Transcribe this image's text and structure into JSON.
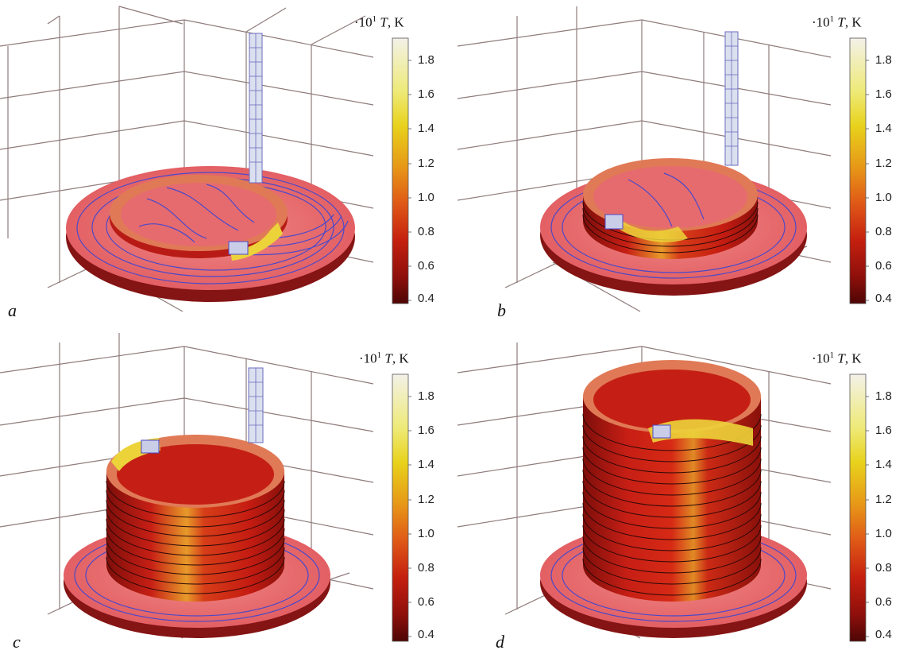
{
  "panels": [
    {
      "id": "a",
      "label": "a"
    },
    {
      "id": "b",
      "label": "b"
    },
    {
      "id": "c",
      "label": "c"
    },
    {
      "id": "d",
      "label": "d"
    }
  ],
  "colorbar": {
    "prefix": "·10",
    "exponent": "1",
    "symbol": "T",
    "unit": ", K",
    "ticks": [
      "1.8",
      "1.6",
      "1.4",
      "1.2",
      "1.0",
      "0.8",
      "0.6",
      "0.4"
    ],
    "colors": [
      "#f3f1e8",
      "#eeea78",
      "#e8d21c",
      "#e79a17",
      "#e05a17",
      "#c5200f",
      "#8e0f0b",
      "#4d0605"
    ]
  },
  "colors": {
    "grid": "#8f7b7b",
    "contour": "#4b49c9",
    "ring_line": "#2a0808",
    "disc_top": "#ea6a6e",
    "disc_side": "#851414",
    "wall": "#cc2218",
    "wall_dark": "#9e1410",
    "rim": "#e57e52",
    "hot": "#ecd33a",
    "column_line": "#6b6bbd"
  }
}
